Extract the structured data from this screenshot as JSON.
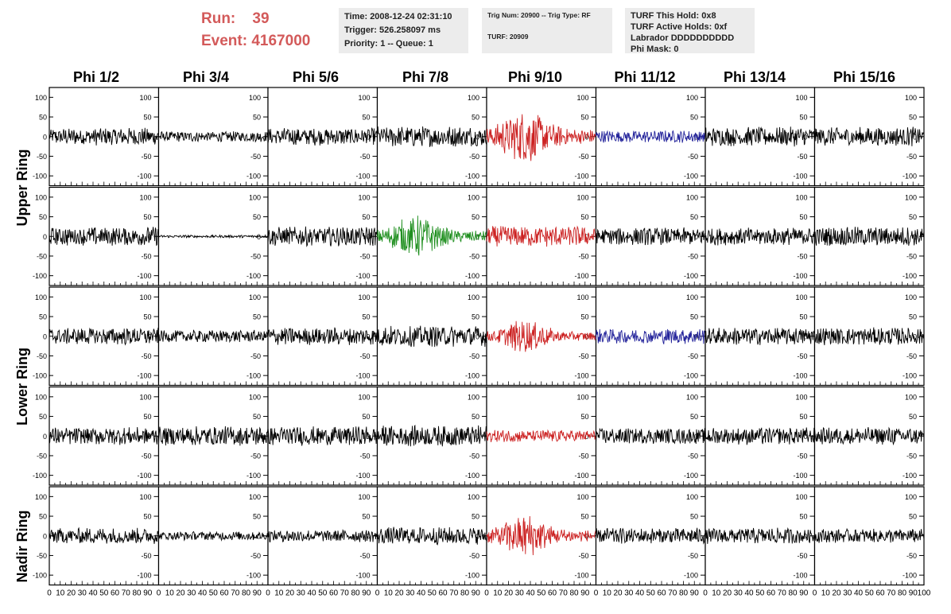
{
  "header": {
    "run_label": "Run:",
    "run_value": "39",
    "event_label": "Event:",
    "event_value": "4167000",
    "box1": {
      "time": "Time: 2008-12-24 02:31:10",
      "trigger": "Trigger: 526.258097 ms",
      "priority": "Priority: 1 -- Queue: 1"
    },
    "box2": {
      "trig": "Trig Num: 20900 -- Trig Type: RF",
      "turf": "TURF: 20909"
    },
    "box3": {
      "this_hold": "TURF This Hold: 0x8",
      "active_holds": "TURF Active Holds: 0xf",
      "labrador": "Labrador DDDDDDDDDD",
      "phi_mask": "Phi Mask: 0"
    }
  },
  "columns": [
    "Phi 1/2",
    "Phi 3/4",
    "Phi 5/6",
    "Phi 7/8",
    "Phi 9/10",
    "Phi 11/12",
    "Phi 13/14",
    "Phi 15/16"
  ],
  "ring_labels": {
    "upper": "Upper Ring",
    "lower": "Lower Ring",
    "nadir": "Nadir Ring"
  },
  "axis": {
    "y_ticks": [
      100,
      50,
      0,
      -50,
      -100
    ],
    "x_tick_labels": [
      "0",
      "10",
      "20",
      "30",
      "40",
      "50",
      "60",
      "70",
      "80",
      "90",
      "100"
    ]
  },
  "colors": {
    "black": "#000000",
    "red": "#cc2222",
    "blue": "#22229a",
    "green": "#1f8f1f",
    "header_red": "#d35a5a",
    "info_bg": "#ececec"
  },
  "chart_data": {
    "type": "line",
    "ylim": [
      -125,
      125
    ],
    "xlim": [
      0,
      100
    ],
    "rows": 5,
    "cols": 8,
    "panels": [
      [
        {
          "color": "black",
          "amp": 20
        },
        {
          "color": "black",
          "amp": 12
        },
        {
          "color": "black",
          "amp": 20
        },
        {
          "color": "black",
          "amp": 24
        },
        {
          "color": "red",
          "amp": 48,
          "burst": true
        },
        {
          "color": "blue",
          "amp": 14
        },
        {
          "color": "black",
          "amp": 22
        },
        {
          "color": "black",
          "amp": 22
        }
      ],
      [
        {
          "color": "black",
          "amp": 22
        },
        {
          "color": "black",
          "amp": 3
        },
        {
          "color": "black",
          "amp": 22
        },
        {
          "color": "green",
          "amp": 36,
          "burst": true
        },
        {
          "color": "red",
          "amp": 24
        },
        {
          "color": "black",
          "amp": 20
        },
        {
          "color": "black",
          "amp": 20
        },
        {
          "color": "black",
          "amp": 22
        }
      ],
      [
        {
          "color": "black",
          "amp": 20
        },
        {
          "color": "black",
          "amp": 14
        },
        {
          "color": "black",
          "amp": 20
        },
        {
          "color": "black",
          "amp": 24
        },
        {
          "color": "red",
          "amp": 28,
          "burst": true
        },
        {
          "color": "blue",
          "amp": 18
        },
        {
          "color": "black",
          "amp": 20
        },
        {
          "color": "black",
          "amp": 20
        }
      ],
      [
        {
          "color": "black",
          "amp": 20
        },
        {
          "color": "black",
          "amp": 22
        },
        {
          "color": "black",
          "amp": 22
        },
        {
          "color": "black",
          "amp": 24
        },
        {
          "color": "red",
          "amp": 14
        },
        {
          "color": "black",
          "amp": 18
        },
        {
          "color": "black",
          "amp": 20
        },
        {
          "color": "black",
          "amp": 20
        }
      ],
      [
        {
          "color": "black",
          "amp": 18
        },
        {
          "color": "black",
          "amp": 10
        },
        {
          "color": "black",
          "amp": 14
        },
        {
          "color": "black",
          "amp": 20
        },
        {
          "color": "red",
          "amp": 38,
          "burst": true
        },
        {
          "color": "black",
          "amp": 18
        },
        {
          "color": "black",
          "amp": 18
        },
        {
          "color": "black",
          "amp": 16
        }
      ]
    ]
  }
}
